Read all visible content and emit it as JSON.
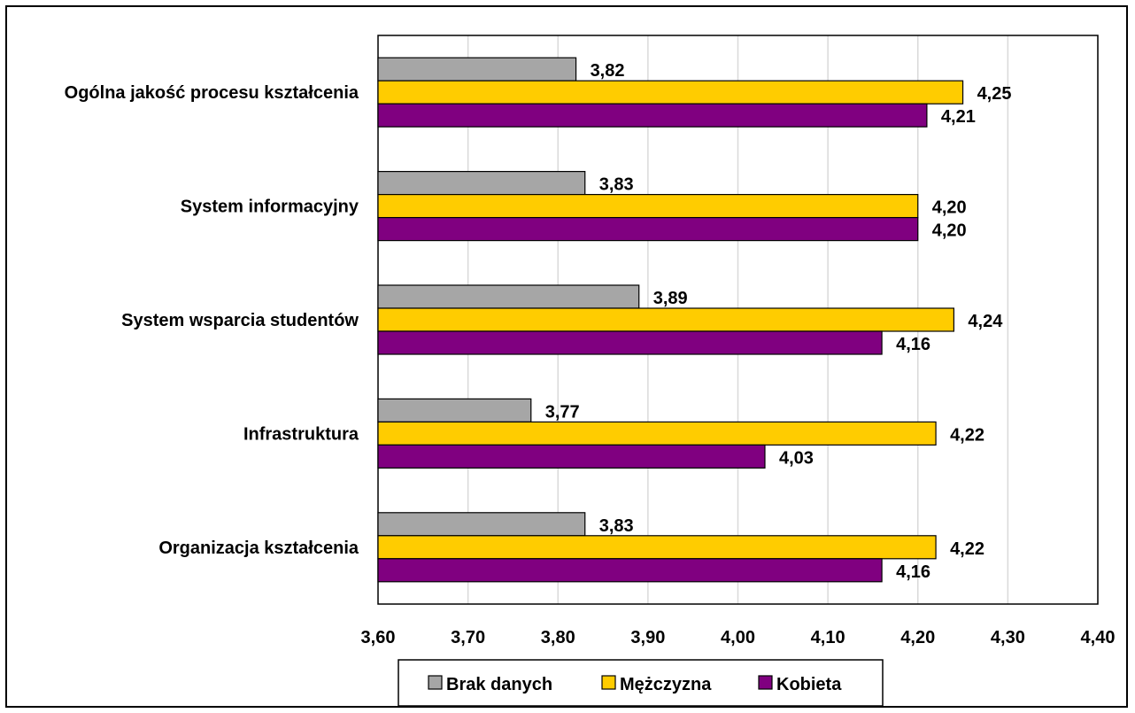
{
  "chart_data": {
    "type": "bar",
    "orientation": "horizontal",
    "title": "",
    "xlabel": "",
    "ylabel": "",
    "categories": [
      "Ogólna jakość procesu kształcenia",
      "System informacyjny",
      "System wsparcia studentów",
      "Infrastruktura",
      "Organizacja kształcenia"
    ],
    "series": [
      {
        "name": "Brak danych",
        "color": "#a6a6a6",
        "values": [
          3.82,
          3.83,
          3.89,
          3.77,
          3.83
        ],
        "labels": [
          "3,82",
          "3,83",
          "3,89",
          "3,77",
          "3,83"
        ]
      },
      {
        "name": "Mężczyzna",
        "color": "#ffcc00",
        "values": [
          4.25,
          4.2,
          4.24,
          4.22,
          4.22
        ],
        "labels": [
          "4,25",
          "4,20",
          "4,24",
          "4,22",
          "4,22"
        ]
      },
      {
        "name": "Kobieta",
        "color": "#800080",
        "values": [
          4.21,
          4.2,
          4.16,
          4.03,
          4.16
        ],
        "labels": [
          "4,21",
          "4,20",
          "4,16",
          "4,03",
          "4,16"
        ]
      }
    ],
    "xlim": [
      3.6,
      4.4
    ],
    "xticks": [
      3.6,
      3.7,
      3.8,
      3.9,
      4.0,
      4.1,
      4.2,
      4.3,
      4.4
    ],
    "xtick_labels": [
      "3,60",
      "3,70",
      "3,80",
      "3,90",
      "4,00",
      "4,10",
      "4,20",
      "4,30",
      "4,40"
    ],
    "grid": true,
    "legend_position": "bottom"
  }
}
